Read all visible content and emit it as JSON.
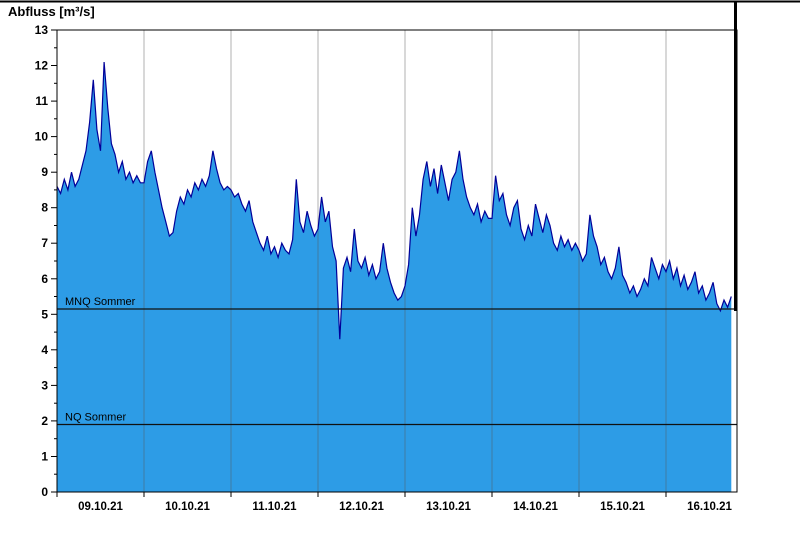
{
  "chart_data": {
    "type": "area",
    "title": "Abfluss [m³/s]",
    "ylabel": "Abfluss [m³/s]",
    "ylim": [
      0,
      13
    ],
    "y_tick_step": 1,
    "y_minor_tick_step": 0.5,
    "x_tick_labels": [
      "09.10.21",
      "10.10.21",
      "11.10.21",
      "12.10.21",
      "13.10.21",
      "14.10.21",
      "15.10.21",
      "16.10.21"
    ],
    "sampling": "hourly",
    "points_per_day": 24,
    "start": "09.10.21 00:00",
    "series_name": "Abfluss",
    "fill_color": "#2d9ce6",
    "line_color": "#000099",
    "grid": "vertical day boundaries only",
    "legend_position": "none",
    "reference_lines": [
      {
        "label": "MNQ Sommer",
        "value": 5.15
      },
      {
        "label": "NQ Sommer",
        "value": 1.9
      }
    ],
    "values": [
      8.6,
      8.4,
      8.8,
      8.5,
      9.0,
      8.6,
      8.8,
      9.2,
      9.6,
      10.4,
      11.6,
      10.2,
      9.6,
      12.1,
      10.8,
      9.8,
      9.5,
      9.0,
      9.3,
      8.8,
      9.0,
      8.7,
      8.9,
      8.7,
      8.7,
      9.3,
      9.6,
      9.0,
      8.5,
      8.0,
      7.6,
      7.2,
      7.3,
      7.9,
      8.3,
      8.1,
      8.5,
      8.3,
      8.7,
      8.5,
      8.8,
      8.6,
      8.9,
      9.6,
      9.1,
      8.7,
      8.5,
      8.6,
      8.5,
      8.3,
      8.4,
      8.1,
      7.9,
      8.2,
      7.6,
      7.3,
      7.0,
      6.8,
      7.2,
      6.7,
      6.9,
      6.6,
      7.0,
      6.8,
      6.7,
      7.1,
      8.8,
      7.6,
      7.3,
      7.9,
      7.5,
      7.2,
      7.4,
      8.3,
      7.6,
      7.9,
      6.9,
      6.5,
      4.3,
      6.3,
      6.6,
      6.2,
      7.4,
      6.5,
      6.3,
      6.6,
      6.1,
      6.4,
      6.0,
      6.2,
      7.0,
      6.3,
      5.9,
      5.6,
      5.4,
      5.5,
      5.8,
      6.4,
      8.0,
      7.2,
      7.8,
      8.8,
      9.3,
      8.6,
      9.1,
      8.4,
      9.2,
      8.7,
      8.2,
      8.8,
      9.0,
      9.6,
      8.8,
      8.3,
      8.0,
      7.8,
      8.1,
      7.6,
      7.9,
      7.7,
      7.7,
      8.9,
      8.2,
      8.4,
      7.8,
      7.5,
      8.0,
      8.2,
      7.4,
      7.1,
      7.5,
      7.2,
      8.1,
      7.7,
      7.3,
      7.8,
      7.5,
      7.0,
      6.8,
      7.2,
      6.9,
      7.1,
      6.8,
      7.0,
      6.8,
      6.5,
      6.7,
      7.8,
      7.2,
      6.9,
      6.4,
      6.6,
      6.2,
      6.0,
      6.3,
      6.9,
      6.1,
      5.9,
      5.6,
      5.8,
      5.5,
      5.7,
      6.0,
      5.8,
      6.6,
      6.3,
      6.0,
      6.4,
      6.2,
      6.5,
      6.0,
      6.3,
      5.8,
      6.1,
      5.7,
      5.9,
      6.2,
      5.6,
      5.8,
      5.4,
      5.6,
      5.9,
      5.3,
      5.1,
      5.4,
      5.2,
      5.5
    ]
  }
}
